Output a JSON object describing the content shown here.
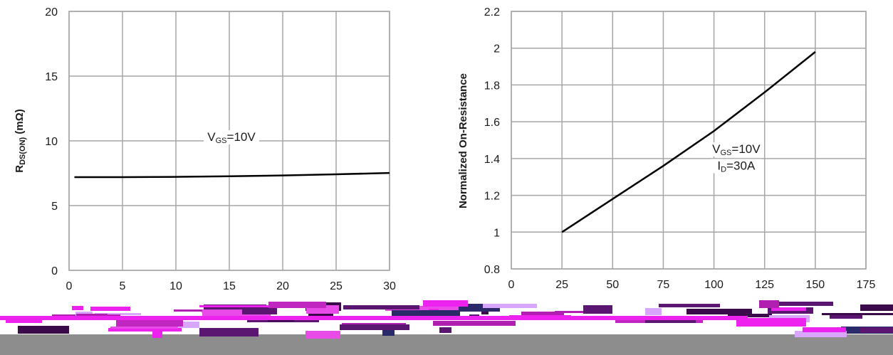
{
  "chart_data": [
    {
      "type": "line",
      "title": "",
      "xlabel": "",
      "ylabel": "RDS(ON) (mΩ)",
      "ylabel_main": "R",
      "ylabel_sub": "DS(ON)",
      "ylabel_unit": " (mΩ)",
      "xlim": [
        0,
        30
      ],
      "ylim": [
        0,
        20
      ],
      "x_ticks": [
        "0",
        "5",
        "10",
        "15",
        "20",
        "25",
        "30"
      ],
      "y_ticks": [
        "0",
        "5",
        "10",
        "15",
        "20"
      ],
      "grid": true,
      "series": [
        {
          "x": [
            0.5,
            5,
            10,
            15,
            20,
            25,
            30
          ],
          "y": [
            7.2,
            7.2,
            7.22,
            7.27,
            7.33,
            7.42,
            7.52
          ]
        }
      ],
      "annotations": [
        {
          "main": "V",
          "sub": "GS",
          "rest": "=10V",
          "x": 15.2,
          "y": 10
        }
      ]
    },
    {
      "type": "line",
      "title": "",
      "xlabel": "",
      "ylabel": "Normalized On-Resistance",
      "xlim": [
        0,
        175
      ],
      "ylim": [
        0.8,
        2.2
      ],
      "x_ticks": [
        "0",
        "25",
        "50",
        "75",
        "100",
        "125",
        "150",
        "175"
      ],
      "y_ticks": [
        "0.8",
        "1",
        "1.2",
        "1.4",
        "1.6",
        "1.8",
        "2",
        "2.2"
      ],
      "grid": true,
      "series": [
        {
          "x": [
            25,
            50,
            75,
            100,
            125,
            150
          ],
          "y": [
            1.0,
            1.18,
            1.36,
            1.55,
            1.76,
            1.98
          ]
        }
      ],
      "annotations": [
        {
          "main": "V",
          "sub": "GS",
          "rest": "=10V",
          "x": 111,
          "y": 1.43
        },
        {
          "main": "I",
          "sub": "D",
          "rest": "=30A",
          "x": 111,
          "y": 1.34
        }
      ]
    }
  ],
  "colors": {
    "gridline": "#a6a6a6",
    "curve": "#000000",
    "band_gray": "#8d8d8d",
    "glitch_magenta": "#ee22ee",
    "glitch_purple": "#3b0a4a"
  }
}
